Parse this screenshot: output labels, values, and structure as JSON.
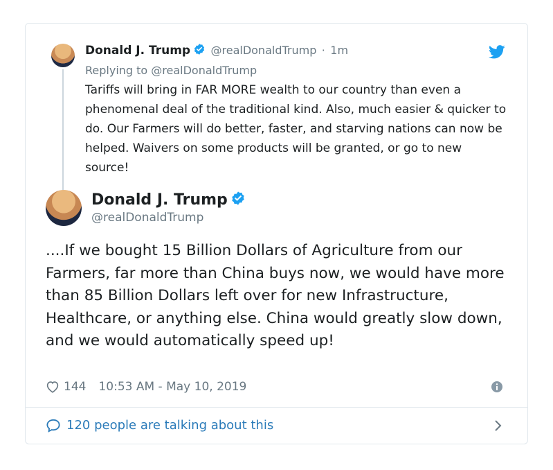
{
  "parent_tweet": {
    "name": "Donald J. Trump",
    "handle": "@realDonaldTrump",
    "separator": "·",
    "time": "1m",
    "replying_to": "Replying to @realDonaldTrump",
    "text": "Tariffs will bring in FAR MORE wealth to our country than even a phenomenal deal of the traditional kind. Also, much easier & quicker to do. Our Farmers will do better, faster, and starving nations can now be helped. Waivers on some products will be granted, or go to new source!"
  },
  "main_tweet": {
    "name": "Donald J. Trump",
    "handle": "@realDonaldTrump",
    "text": "....If we bought 15 Billion Dollars of Agriculture from our Farmers, far more than China buys now, we would have more than 85 Billion Dollars left over for new Infrastructure, Healthcare, or anything else. China would greatly slow down, and we would automatically speed up!",
    "likes": "144",
    "timestamp": "10:53 AM - May 10, 2019"
  },
  "footer": {
    "talking": "120 people are talking about this"
  },
  "colors": {
    "link": "#2b7bb9",
    "verified": "#1da1f2",
    "muted": "#697882",
    "border": "#e1e8ed"
  },
  "icons": [
    "verified-badge-icon",
    "twitter-bird-icon",
    "heart-icon",
    "info-icon",
    "speech-bubble-icon",
    "chevron-right-icon"
  ]
}
